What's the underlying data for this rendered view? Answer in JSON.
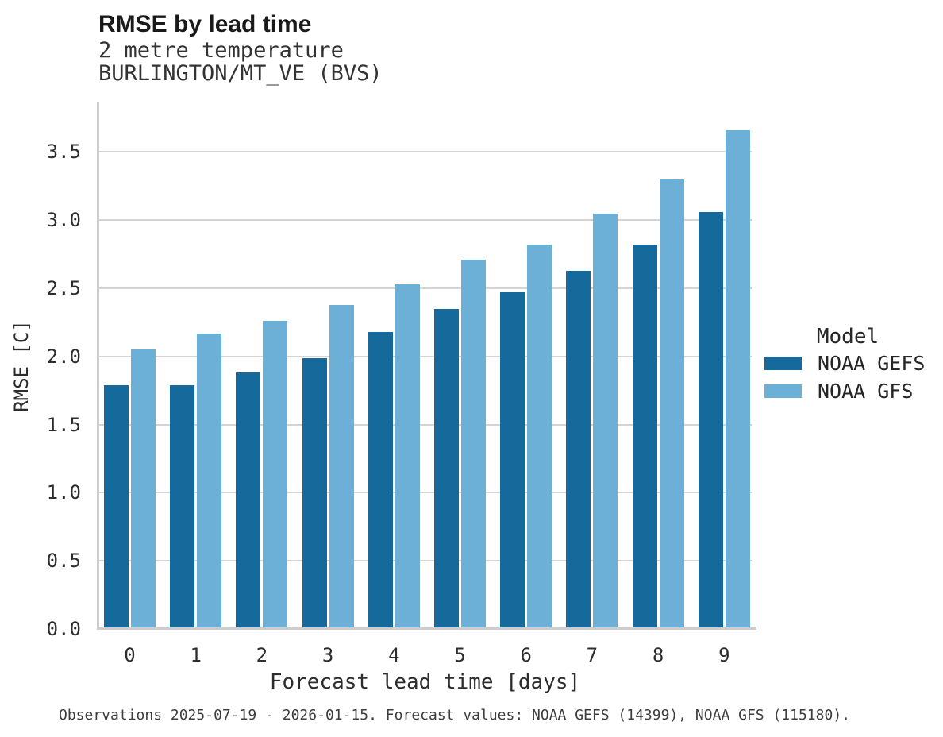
{
  "header": {
    "title": "RMSE by lead time",
    "subtitle_line1": "2 metre temperature",
    "subtitle_line2": "BURLINGTON/MT_VE (BVS)"
  },
  "chart_data": {
    "type": "bar",
    "title": "RMSE by lead time",
    "subtitle": [
      "2 metre temperature",
      "BURLINGTON/MT_VE (BVS)"
    ],
    "xlabel": "Forecast lead time [days]",
    "ylabel": "RMSE [C]",
    "categories": [
      "0",
      "1",
      "2",
      "3",
      "4",
      "5",
      "6",
      "7",
      "8",
      "9"
    ],
    "y_ticks": [
      "0.0",
      "0.5",
      "1.0",
      "1.5",
      "2.0",
      "2.5",
      "3.0",
      "3.5"
    ],
    "ylim": [
      0,
      3.87
    ],
    "grid": "horizontal",
    "legend_position": "right",
    "series": [
      {
        "name": "NOAA GEFS",
        "color": "#166a9b",
        "values": [
          1.79,
          1.79,
          1.88,
          1.99,
          2.18,
          2.35,
          2.47,
          2.63,
          2.82,
          3.06
        ]
      },
      {
        "name": "NOAA GFS",
        "color": "#6cb0d8",
        "values": [
          2.05,
          2.17,
          2.26,
          2.38,
          2.53,
          2.71,
          2.82,
          3.05,
          3.3,
          3.66
        ]
      }
    ]
  },
  "legend": {
    "title": "Model"
  },
  "footer": {
    "note": "Observations 2025-07-19 - 2026-01-15. Forecast values: NOAA GEFS (14399), NOAA GFS (115180)."
  },
  "colors": {
    "grid": "#d4d4d4",
    "spine": "#cdcdcd",
    "gefs": "#166a9b",
    "gfs": "#6cb0d8"
  }
}
